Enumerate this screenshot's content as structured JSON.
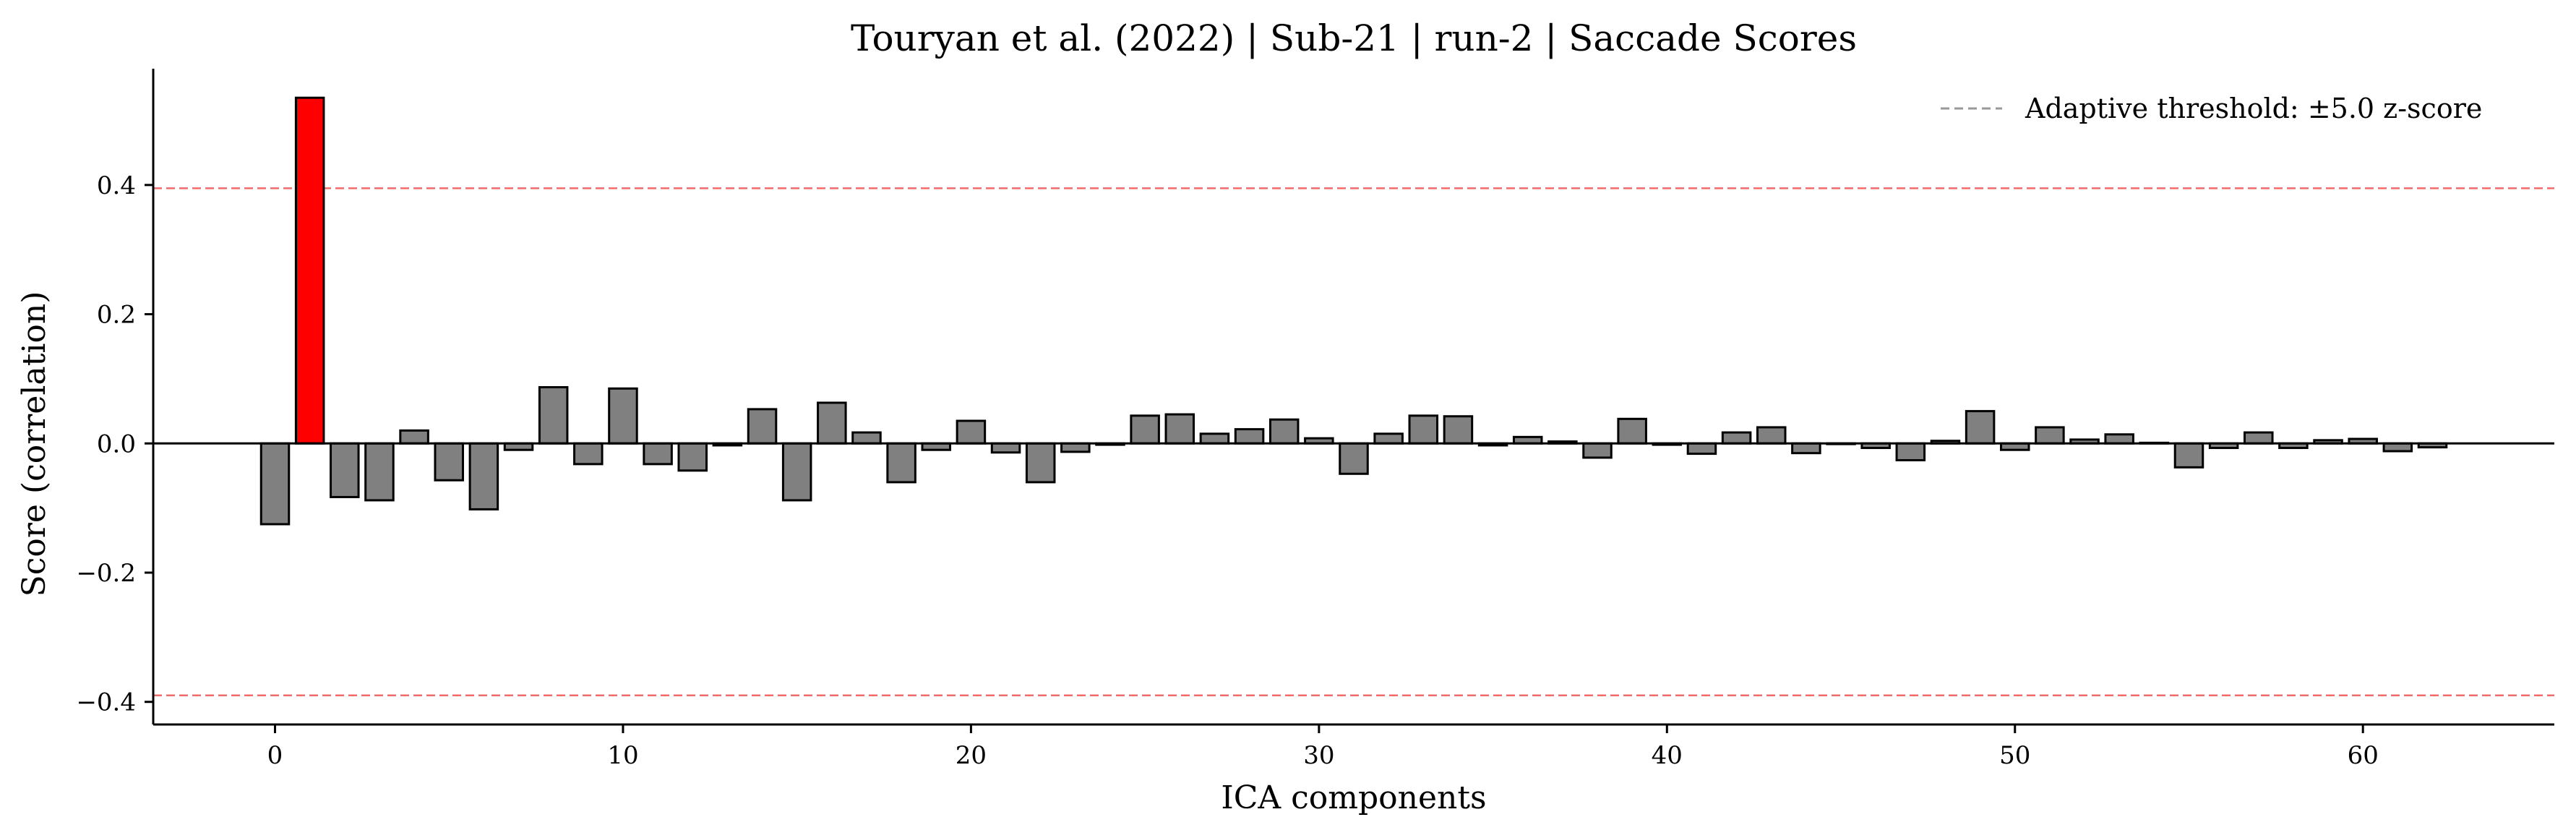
{
  "chart_data": {
    "type": "bar",
    "title": "Touryan et al. (2022) | Sub-21 | run-2 | Saccade Scores",
    "xlabel": "ICA components",
    "ylabel": "Score (correlation)",
    "xlim": [
      -3.5,
      65.5
    ],
    "ylim": [
      -0.435,
      0.58
    ],
    "xticks": [
      0,
      10,
      20,
      30,
      40,
      50,
      60
    ],
    "yticks": [
      -0.4,
      -0.2,
      0.0,
      0.2,
      0.4
    ],
    "ytick_labels": [
      "−0.4",
      "−0.2",
      "0.0",
      "0.2",
      "0.4"
    ],
    "threshold": {
      "upper": 0.395,
      "lower": -0.39,
      "color": "#f26b6b"
    },
    "legend": {
      "label": "Adaptive threshold: ±5.0 z-score",
      "position": "top-right",
      "color": "#999999"
    },
    "colors": {
      "bar": "#808080",
      "flagged": "#ff0000",
      "edge": "#000000"
    },
    "flagged_components": [
      1
    ],
    "x": [
      0,
      1,
      2,
      3,
      4,
      5,
      6,
      7,
      8,
      9,
      10,
      11,
      12,
      13,
      14,
      15,
      16,
      17,
      18,
      19,
      20,
      21,
      22,
      23,
      24,
      25,
      26,
      27,
      28,
      29,
      30,
      31,
      32,
      33,
      34,
      35,
      36,
      37,
      38,
      39,
      40,
      41,
      42,
      43,
      44,
      45,
      46,
      47,
      48,
      49,
      50,
      51,
      52,
      53,
      54,
      55,
      56,
      57,
      58,
      59,
      60,
      61,
      62
    ],
    "values": [
      -0.125,
      0.535,
      -0.083,
      -0.088,
      0.02,
      -0.057,
      -0.102,
      -0.01,
      0.087,
      -0.032,
      0.085,
      -0.032,
      -0.042,
      -0.003,
      0.053,
      -0.088,
      0.063,
      0.017,
      -0.06,
      -0.01,
      0.035,
      -0.014,
      -0.06,
      -0.013,
      -0.002,
      0.043,
      0.045,
      0.015,
      0.022,
      0.037,
      0.008,
      -0.047,
      0.015,
      0.043,
      0.042,
      -0.003,
      0.01,
      0.003,
      -0.022,
      0.038,
      -0.002,
      -0.016,
      0.017,
      0.025,
      -0.015,
      -0.001,
      -0.007,
      -0.026,
      0.004,
      0.05,
      -0.01,
      0.025,
      0.006,
      0.014,
      0.001,
      -0.037,
      -0.007,
      0.017,
      -0.007,
      0.005,
      0.007,
      -0.012,
      -0.006
    ]
  }
}
